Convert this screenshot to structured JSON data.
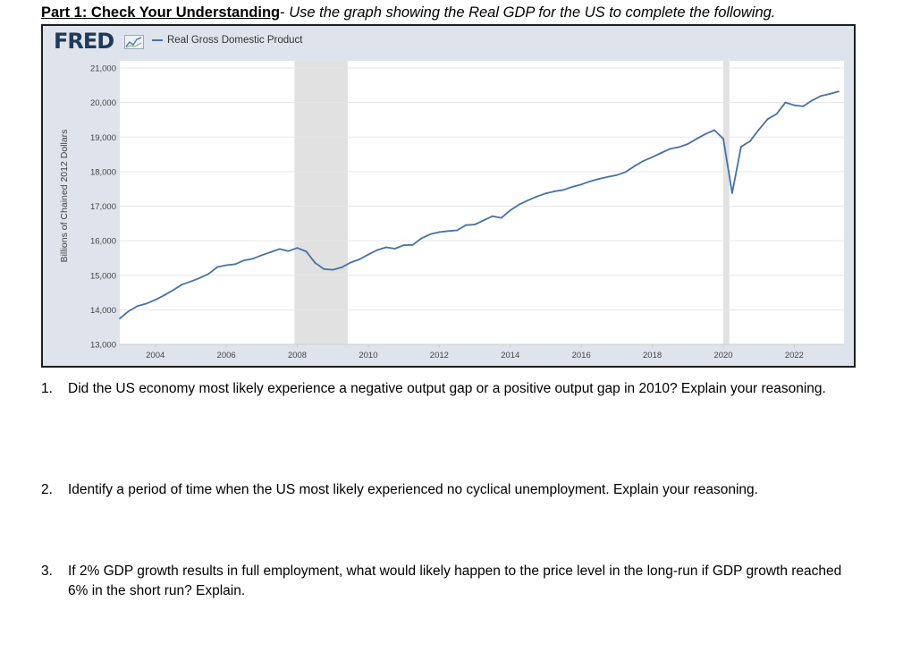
{
  "heading": {
    "part": "Part 1: Check Your Understanding",
    "instruction": "Use the graph showing the Real GDP for the US to complete the following."
  },
  "fred": {
    "logo_text": "FRED",
    "logo_icon": "chart-line-icon",
    "legend_label": "Real Gross Domestic Product"
  },
  "chart_data": {
    "type": "line",
    "title": "",
    "xlabel": "",
    "ylabel": "Billions of Chained 2012 Dollars",
    "ylim": [
      13000,
      21000
    ],
    "xlim": [
      2003.0,
      2023.4
    ],
    "yticks": [
      "13,000",
      "14,000",
      "15,000",
      "16,000",
      "17,000",
      "18,000",
      "19,000",
      "20,000",
      "21,000"
    ],
    "xticks": [
      "2004",
      "2006",
      "2008",
      "2010",
      "2012",
      "2014",
      "2016",
      "2018",
      "2020",
      "2022"
    ],
    "grid": true,
    "legend": "top-left",
    "colors": {
      "line": "#4572a7",
      "recession": "#e1e1e1",
      "grid": "#e6e6e6",
      "frame": "#dfe4ec"
    },
    "recessions": [
      [
        2007.92,
        2009.42
      ],
      [
        2020.0,
        2020.17
      ]
    ],
    "series": [
      {
        "name": "Real Gross Domestic Product",
        "x": [
          2003.0,
          2003.25,
          2003.5,
          2003.75,
          2004.0,
          2004.25,
          2004.5,
          2004.75,
          2005.0,
          2005.25,
          2005.5,
          2005.75,
          2006.0,
          2006.25,
          2006.5,
          2006.75,
          2007.0,
          2007.25,
          2007.5,
          2007.75,
          2008.0,
          2008.25,
          2008.5,
          2008.75,
          2009.0,
          2009.25,
          2009.5,
          2009.75,
          2010.0,
          2010.25,
          2010.5,
          2010.75,
          2011.0,
          2011.25,
          2011.5,
          2011.75,
          2012.0,
          2012.25,
          2012.5,
          2012.75,
          2013.0,
          2013.25,
          2013.5,
          2013.75,
          2014.0,
          2014.25,
          2014.5,
          2014.75,
          2015.0,
          2015.25,
          2015.5,
          2015.75,
          2016.0,
          2016.25,
          2016.5,
          2016.75,
          2017.0,
          2017.25,
          2017.5,
          2017.75,
          2018.0,
          2018.25,
          2018.5,
          2018.75,
          2019.0,
          2019.25,
          2019.5,
          2019.75,
          2020.0,
          2020.25,
          2020.5,
          2020.75,
          2021.0,
          2021.25,
          2021.5,
          2021.75,
          2022.0,
          2022.25,
          2022.5,
          2022.75,
          2023.0,
          2023.25
        ],
        "values": [
          13750,
          13960,
          14110,
          14180,
          14290,
          14420,
          14570,
          14730,
          14820,
          14920,
          15040,
          15240,
          15290,
          15320,
          15430,
          15480,
          15580,
          15670,
          15760,
          15700,
          15790,
          15690,
          15360,
          15180,
          15160,
          15230,
          15370,
          15460,
          15600,
          15730,
          15810,
          15770,
          15870,
          15880,
          16070,
          16190,
          16250,
          16280,
          16300,
          16450,
          16470,
          16590,
          16710,
          16660,
          16880,
          17050,
          17170,
          17280,
          17370,
          17430,
          17470,
          17560,
          17630,
          17720,
          17790,
          17850,
          17900,
          17990,
          18160,
          18310,
          18420,
          18540,
          18660,
          18710,
          18800,
          18950,
          19090,
          19200,
          18950,
          17380,
          18720,
          18880,
          19210,
          19520,
          19670,
          20000,
          19920,
          19890,
          20060,
          20190,
          20250,
          20320
        ]
      }
    ]
  },
  "questions": [
    {
      "number": "1.",
      "text": "Did the US economy most likely experience a negative output gap or a positive output gap in 2010? Explain your reasoning."
    },
    {
      "number": "2.",
      "text": "Identify a period of time when the US most likely experienced no cyclical unemployment. Explain your reasoning."
    },
    {
      "number": "3.",
      "text": "If 2% GDP growth results in full employment, what would likely happen to the price level in the long-run if GDP growth reached 6% in the short run? Explain."
    }
  ]
}
